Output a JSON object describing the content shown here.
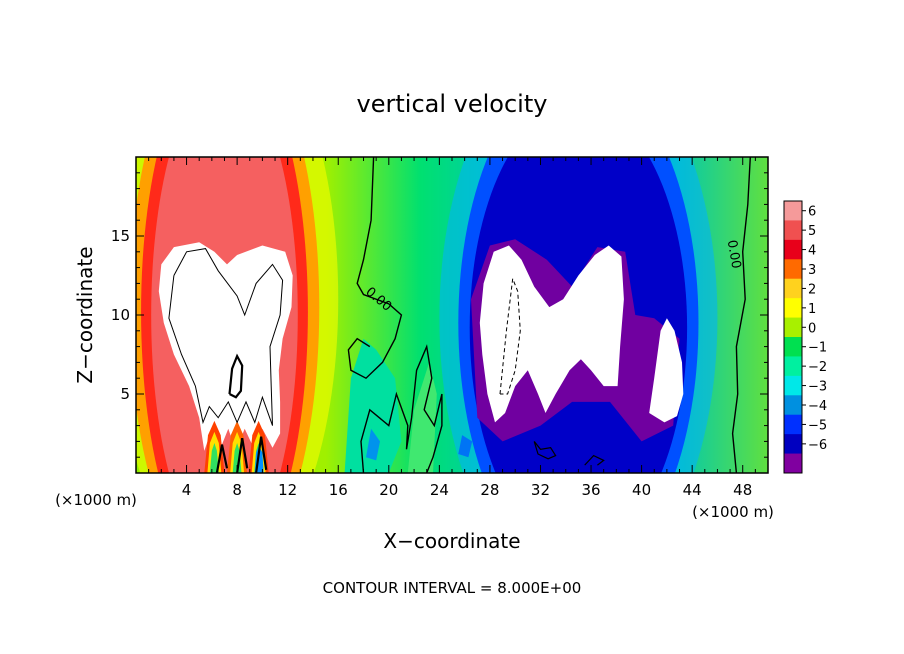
{
  "chart_data": {
    "type": "heatmap",
    "title": "vertical velocity",
    "xlabel": "X−coordinate",
    "ylabel": "Z−coordinate",
    "x_unit_label": "(×1000 m)",
    "x_unit_label_right": "(×1000 m)",
    "footer": "CONTOUR INTERVAL = 8.000E+00",
    "xlim": [
      0,
      50
    ],
    "ylim": [
      0,
      20
    ],
    "x_ticks": [
      4,
      8,
      12,
      16,
      20,
      24,
      28,
      32,
      36,
      40,
      44,
      48
    ],
    "y_ticks": [
      5,
      10,
      15
    ],
    "colorbar": {
      "ticks": [
        6,
        5,
        4,
        3,
        2,
        1,
        0,
        -1,
        -2,
        -3,
        -4,
        -5,
        -6
      ],
      "tick_labels": [
        "6",
        "5",
        "4",
        "3",
        "2",
        "1",
        "0",
        "−1",
        "−2",
        "−3",
        "−4",
        "−5",
        "−6"
      ],
      "colors_top_to_bottom": [
        "#f59a9a",
        "#f05050",
        "#e8001a",
        "#ff6a00",
        "#ffd21e",
        "#ffff00",
        "#a8f000",
        "#00e050",
        "#00f0a0",
        "#00e8e8",
        "#0090e0",
        "#0030ff",
        "#0000c0",
        "#8000a0"
      ],
      "above_range_color": "#ffffff",
      "below_range_color": "#ffffff"
    },
    "contour_labels": [
      {
        "text": "0.00",
        "x": 19.0,
        "z": 10.8
      },
      {
        "text": "0.00",
        "x": 47.0,
        "z": 13.8
      }
    ],
    "features": {
      "updraft_core": {
        "x_range": [
          1.5,
          12.5
        ],
        "z_range": [
          1.0,
          14.5
        ],
        "value": "above 6"
      },
      "downdraft_core": {
        "x_range": [
          27,
          43
        ],
        "z_range": [
          2.5,
          14
        ],
        "value": "below -6"
      }
    }
  }
}
